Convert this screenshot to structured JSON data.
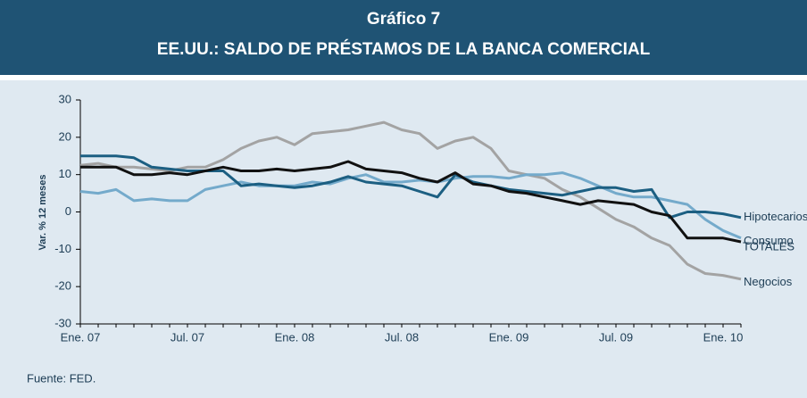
{
  "chart_data": {
    "type": "line",
    "title": "Gráfico 7",
    "subtitle": "EE.UU.: SALDO DE PRÉSTAMOS DE LA BANCA COMERCIAL",
    "y_label": "Var. % 12 meses",
    "source": "Fuente: FED.",
    "categories": [
      "Ene. 07",
      null,
      null,
      null,
      null,
      null,
      "Jul. 07",
      null,
      null,
      null,
      null,
      null,
      "Ene. 08",
      null,
      null,
      null,
      null,
      null,
      "Jul. 08",
      null,
      null,
      null,
      null,
      null,
      "Ene. 09",
      null,
      null,
      null,
      null,
      null,
      "Jul. 09",
      null,
      null,
      null,
      null,
      null,
      "Ene. 10",
      null
    ],
    "ylim": [
      -30,
      30
    ],
    "yticks": [
      -30,
      -20,
      -10,
      0,
      10,
      20,
      30
    ],
    "series": [
      {
        "name": "Hipotecarios",
        "color": "#1c5f82",
        "values": [
          15,
          15,
          15,
          14.5,
          12,
          11.5,
          11,
          11,
          11,
          7,
          7.5,
          7,
          6.5,
          7,
          8,
          9.5,
          8,
          7.5,
          7,
          5.5,
          4,
          10,
          8,
          7,
          6,
          5.5,
          5,
          4.5,
          5.5,
          6.5,
          6.5,
          5.5,
          6,
          -1.5,
          0,
          0,
          -0.5,
          -1.5
        ]
      },
      {
        "name": "Consumo",
        "color": "#74aacb",
        "values": [
          5.5,
          5,
          6,
          3,
          3.5,
          3,
          3,
          6,
          7,
          8,
          7,
          7,
          7,
          8,
          7.5,
          9,
          10,
          8,
          8,
          8.5,
          8,
          9,
          9.5,
          9.5,
          9,
          10,
          10,
          10.5,
          9,
          7,
          5,
          4,
          4,
          3,
          2,
          -2,
          -5,
          -7
        ]
      },
      {
        "name": "TOTALES",
        "color": "#111111",
        "values": [
          12,
          12,
          12,
          10,
          10,
          10.5,
          10,
          11,
          12,
          11,
          11,
          11.5,
          11,
          11.5,
          12,
          13.5,
          11.5,
          11,
          10.5,
          9,
          8,
          10.5,
          7.5,
          7,
          5.5,
          5,
          4,
          3,
          2,
          3,
          2.5,
          2,
          0,
          -1,
          -7,
          -7,
          -7,
          -8
        ]
      },
      {
        "name": "Negocios",
        "color": "#a3a3a3",
        "values": [
          12.5,
          13,
          12,
          12,
          11.5,
          11,
          12,
          12,
          14,
          17,
          19,
          20,
          18,
          21,
          21.5,
          22,
          23,
          24,
          22,
          21,
          17,
          19,
          20,
          17,
          11,
          10,
          9,
          6,
          4,
          1,
          -2,
          -4,
          -7,
          -9,
          -14,
          -16.5,
          -17,
          -18
        ]
      }
    ]
  }
}
